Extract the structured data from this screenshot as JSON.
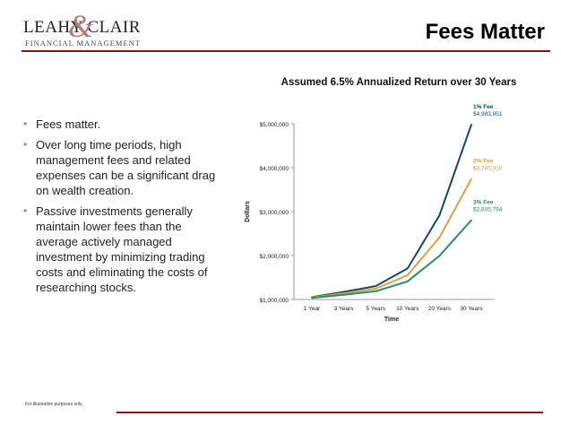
{
  "header": {
    "logo": {
      "name": "LEAHY CLAIR",
      "ampersand": "&",
      "tagline": "FINANCIAL MANAGEMENT"
    },
    "title": "Fees Matter"
  },
  "bullets": [
    "Fees matter.",
    "Over long time periods, high management fees and related expenses can be a significant drag on wealth creation.",
    "Passive investments generally maintain lower fees than the average actively managed investment by minimizing trading costs and eliminating the costs of researching stocks."
  ],
  "footnote": "For illustrative    purposes    only.",
  "colors": {
    "rule": "#7a1a1a",
    "fee1": "#17495c",
    "fee2": "#d6a24a",
    "fee3": "#2a8a6a"
  },
  "chart_data": {
    "type": "line",
    "title": "Assumed 6.5% Annualized Return over 30 Years",
    "xlabel": "Time",
    "ylabel": "Dollars",
    "categories": [
      "1 Year",
      "3 Years",
      "5 Years",
      "10 Years",
      "20 Years",
      "30 Years"
    ],
    "ylim": [
      1000000,
      5000000
    ],
    "yticks": [
      1000000,
      2000000,
      3000000,
      4000000,
      5000000
    ],
    "ytick_labels": [
      "$1,000,000",
      "$2,000,000",
      "$3,000,000",
      "$4,000,000",
      "$5,000,000"
    ],
    "grid": false,
    "legend": "end-of-line labels",
    "series": [
      {
        "name": "1% Fee",
        "end_label": "$4,983,951",
        "color": "#17495c",
        "values": [
          1055000,
          1174000,
          1305000,
          1706000,
          2917000,
          4983951
        ]
      },
      {
        "name": "2% Fee",
        "end_label": "$3,745,318",
        "color": "#d6a24a",
        "values": [
          1045000,
          1141000,
          1246000,
          1553000,
          2412000,
          3745318
        ]
      },
      {
        "name": "3% Fee",
        "end_label": "$2,805,794",
        "color": "#2a8a6a",
        "values": [
          1035000,
          1109000,
          1188000,
          1412000,
          1994000,
          2805794
        ]
      }
    ]
  }
}
